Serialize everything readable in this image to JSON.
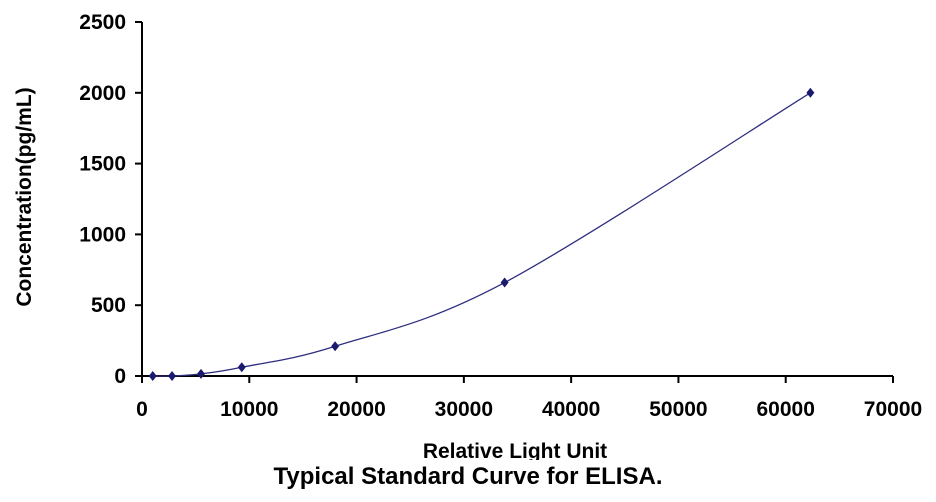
{
  "caption": "Typical Standard Curve for ELISA.",
  "chart_data": {
    "type": "scatter",
    "xlabel": "Relative Light Unit",
    "ylabel": "Concentration(pg/mL)",
    "xlim": [
      0,
      70000
    ],
    "ylim": [
      0,
      2500
    ],
    "x_ticks": [
      "0",
      "10000",
      "20000",
      "30000",
      "40000",
      "50000",
      "60000",
      "70000"
    ],
    "y_ticks": [
      "0",
      "500",
      "1000",
      "1500",
      "2000",
      "2500"
    ],
    "grid": false,
    "legend": "none",
    "trendline": "smooth curve through points",
    "colors": {
      "line": "#2e2e80",
      "marker": "#1a1a6e"
    },
    "series": [
      {
        "x": [
          1000,
          2800,
          5500,
          9300,
          18000,
          33800,
          62300
        ],
        "y": [
          0,
          0,
          15,
          62,
          210,
          660,
          2000
        ]
      }
    ]
  }
}
